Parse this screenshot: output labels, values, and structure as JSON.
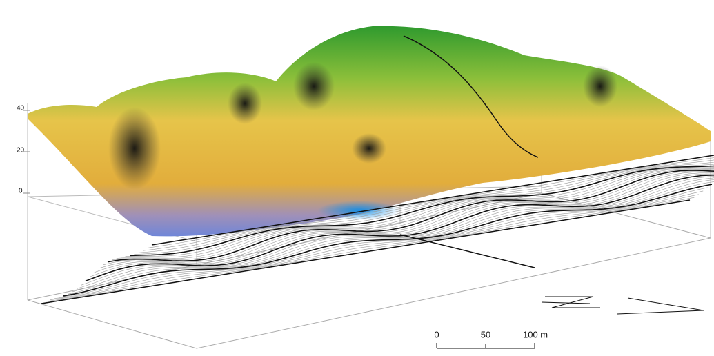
{
  "z_axis": {
    "ticks": [
      40,
      20,
      0
    ]
  },
  "scale_bar": {
    "labels": [
      "0",
      "50",
      "100 m"
    ]
  }
}
